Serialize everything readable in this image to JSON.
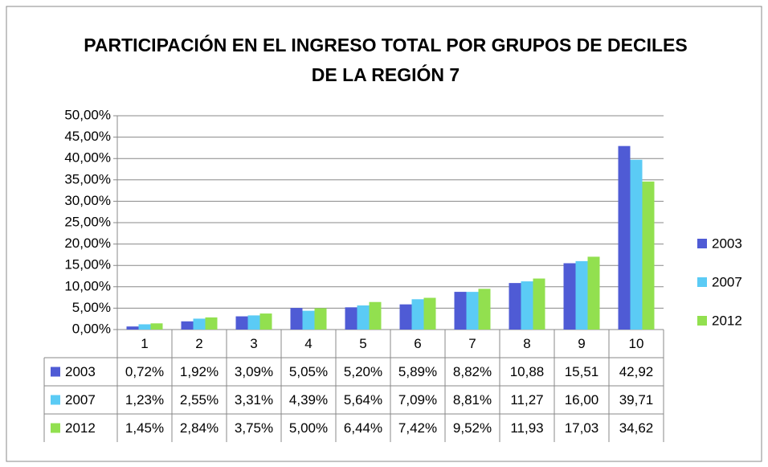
{
  "chart_data": {
    "type": "bar",
    "title": "PARTICIPACIÓN EN EL INGRESO TOTAL POR GRUPOS DE DECILES DE LA REGIÓN 7",
    "categories": [
      "1",
      "2",
      "3",
      "4",
      "5",
      "6",
      "7",
      "8",
      "9",
      "10"
    ],
    "series": [
      {
        "name": "2003",
        "color": "#4f5bd5",
        "values": [
          0.72,
          1.92,
          3.09,
          5.05,
          5.2,
          5.89,
          8.82,
          10.88,
          15.51,
          42.92
        ],
        "value_labels": [
          "0,72%",
          "1,92%",
          "3,09%",
          "5,05%",
          "5,20%",
          "5,89%",
          "8,82%",
          "10,88",
          "15,51",
          "42,92"
        ]
      },
      {
        "name": "2007",
        "color": "#5bcbf5",
        "values": [
          1.23,
          2.55,
          3.31,
          4.39,
          5.64,
          7.09,
          8.81,
          11.27,
          16.0,
          39.71
        ],
        "value_labels": [
          "1,23%",
          "2,55%",
          "3,31%",
          "4,39%",
          "5,64%",
          "7,09%",
          "8,81%",
          "11,27",
          "16,00",
          "39,71"
        ]
      },
      {
        "name": "2012",
        "color": "#92e04f",
        "values": [
          1.45,
          2.84,
          3.75,
          5.0,
          6.44,
          7.42,
          9.52,
          11.93,
          17.03,
          34.62
        ],
        "value_labels": [
          "1,45%",
          "2,84%",
          "3,75%",
          "5,00%",
          "6,44%",
          "7,42%",
          "9,52%",
          "11,93",
          "17,03",
          "34,62"
        ]
      }
    ],
    "ylim": [
      0,
      50
    ],
    "yticks": [
      {
        "value": 0,
        "label": "0,00%"
      },
      {
        "value": 5,
        "label": "5,00%"
      },
      {
        "value": 10,
        "label": "10,00%"
      },
      {
        "value": 15,
        "label": "15,00%"
      },
      {
        "value": 20,
        "label": "20,00%"
      },
      {
        "value": 25,
        "label": "25,00%"
      },
      {
        "value": 30,
        "label": "30,00%"
      },
      {
        "value": 35,
        "label": "35,00%"
      },
      {
        "value": 40,
        "label": "40,00%"
      },
      {
        "value": 45,
        "label": "45,00%"
      },
      {
        "value": 50,
        "label": "50,00%"
      }
    ],
    "grid": true,
    "legend": "right"
  }
}
